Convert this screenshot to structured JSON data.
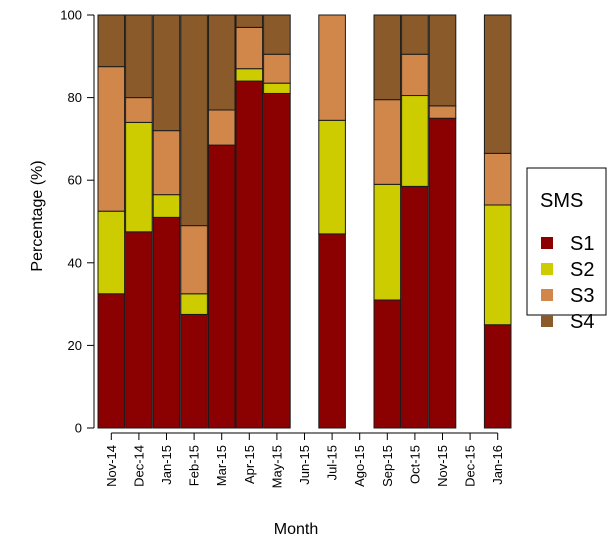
{
  "chart_data": {
    "type": "bar",
    "stacked": true,
    "xlabel": "Month",
    "ylabel": "Percentage (%)",
    "ylim": [
      0,
      100
    ],
    "yticks": [
      0,
      20,
      40,
      60,
      80,
      100
    ],
    "grid": false,
    "legend_position": "right",
    "categories": [
      "Nov-14",
      "Dec-14",
      "Jan-15",
      "Feb-15",
      "Mar-15",
      "Apr-15",
      "May-15",
      "Jun-15",
      "Jul-15",
      "Ago-15",
      "Sep-15",
      "Oct-15",
      "Nov-15",
      "Dec-15",
      "Jan-16"
    ],
    "legend": {
      "title": "SMS"
    },
    "series": [
      {
        "name": "S1",
        "color": "#8b0000",
        "values": [
          32.5,
          47.5,
          51,
          27.5,
          68.5,
          84,
          81,
          null,
          47,
          null,
          31,
          58.5,
          75,
          null,
          25
        ]
      },
      {
        "name": "S2",
        "color": "#cccc00",
        "values": [
          20,
          26.5,
          5.5,
          5,
          0,
          3,
          2.5,
          null,
          27.5,
          null,
          28,
          22,
          0,
          null,
          29
        ]
      },
      {
        "name": "S3",
        "color": "#d2874a",
        "values": [
          35,
          6,
          15.5,
          16.5,
          8.5,
          10,
          7,
          null,
          25.5,
          null,
          20.5,
          10,
          3,
          null,
          12.5
        ]
      },
      {
        "name": "S4",
        "color": "#8b5a2b",
        "values": [
          12.5,
          20,
          28,
          51,
          23,
          3,
          9.5,
          null,
          0,
          null,
          20.5,
          9.5,
          22,
          null,
          33.5
        ]
      }
    ]
  }
}
